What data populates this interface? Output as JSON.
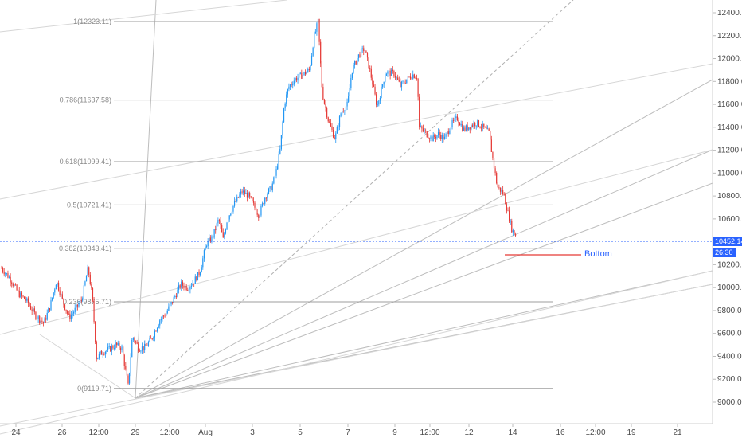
{
  "chart_data": {
    "type": "candlestick",
    "price_axis": {
      "ticks": [
        "12400.00",
        "12200.00",
        "12000.00",
        "11800.00",
        "11600.00",
        "11400.00",
        "11200.00",
        "11000.00",
        "10800.00",
        "10600.00",
        "10400.00",
        "10200.00",
        "10000.00",
        "9800.00",
        "9600.00",
        "9400.00",
        "9200.00",
        "9000.00"
      ],
      "range": [
        8980,
        12480
      ]
    },
    "time_axis": {
      "ticks": [
        "24",
        "26",
        "12:00",
        "29",
        "12:00",
        "Aug",
        "3",
        "5",
        "7",
        "9",
        "12:00",
        "12",
        "14",
        "16",
        "12:00",
        "19",
        "21"
      ]
    },
    "current_price": {
      "label": "10452.14",
      "value": 10452.14,
      "countdown": "26:30",
      "color": "#2962ff"
    },
    "fib_levels": [
      {
        "ratio": "1",
        "price": 12323.11,
        "label": "1(12323.11)"
      },
      {
        "ratio": "0.786",
        "price": 11637.58,
        "label": "0.786(11637.58)"
      },
      {
        "ratio": "0.618",
        "price": 11099.41,
        "label": "0.618(11099.41)"
      },
      {
        "ratio": "0.5",
        "price": 10721.41,
        "label": "0.5(10721.41)"
      },
      {
        "ratio": "0.382",
        "price": 10343.41,
        "label": "0.382(10343.41)"
      },
      {
        "ratio": "0.236",
        "price": 9875.71,
        "label": "0.236(9875.71)"
      },
      {
        "ratio": "0",
        "price": 9119.71,
        "label": "0(9119.71)"
      }
    ],
    "annotation": {
      "text": "Bottom",
      "price": 10343
    },
    "colors": {
      "up": "#2196f3",
      "down": "#e53935",
      "fib_line": "#9e9e9e",
      "fan_line": "#bdbdbd"
    },
    "close_path": [
      [
        0,
        10170
      ],
      [
        0.4,
        10080
      ],
      [
        0.8,
        9950
      ],
      [
        1.2,
        9880
      ],
      [
        1.6,
        9760
      ],
      [
        2.0,
        9690
      ],
      [
        2.3,
        9840
      ],
      [
        2.6,
        10060
      ],
      [
        2.9,
        9880
      ],
      [
        3.2,
        9740
      ],
      [
        3.5,
        9810
      ],
      [
        3.8,
        9900
      ],
      [
        4.1,
        10170
      ],
      [
        4.3,
        9920
      ],
      [
        4.5,
        9390
      ],
      [
        4.8,
        9440
      ],
      [
        5.1,
        9460
      ],
      [
        5.4,
        9500
      ],
      [
        5.7,
        9470
      ],
      [
        5.95,
        9200
      ],
      [
        6.0,
        9140
      ],
      [
        6.2,
        9580
      ],
      [
        6.5,
        9470
      ],
      [
        6.8,
        9480
      ],
      [
        7.1,
        9550
      ],
      [
        7.5,
        9720
      ],
      [
        7.8,
        9780
      ],
      [
        8.1,
        9880
      ],
      [
        8.5,
        10030
      ],
      [
        8.8,
        10000
      ],
      [
        9.1,
        10050
      ],
      [
        9.4,
        10140
      ],
      [
        9.7,
        10380
      ],
      [
        10.0,
        10440
      ],
      [
        10.3,
        10600
      ],
      [
        10.5,
        10420
      ],
      [
        10.7,
        10600
      ],
      [
        11.0,
        10720
      ],
      [
        11.4,
        10840
      ],
      [
        11.7,
        10800
      ],
      [
        12.0,
        10700
      ],
      [
        12.2,
        10630
      ],
      [
        12.5,
        10800
      ],
      [
        12.8,
        10880
      ],
      [
        13.0,
        11000
      ],
      [
        13.2,
        11200
      ],
      [
        13.4,
        11600
      ],
      [
        13.6,
        11750
      ],
      [
        13.9,
        11820
      ],
      [
        14.2,
        11850
      ],
      [
        14.6,
        11900
      ],
      [
        14.8,
        12180
      ],
      [
        15.0,
        12320
      ],
      [
        15.2,
        11700
      ],
      [
        15.5,
        11450
      ],
      [
        15.8,
        11300
      ],
      [
        16.1,
        11540
      ],
      [
        16.4,
        11600
      ],
      [
        16.6,
        11890
      ],
      [
        16.9,
        12020
      ],
      [
        17.2,
        12090
      ],
      [
        17.5,
        11860
      ],
      [
        17.8,
        11580
      ],
      [
        18.2,
        11880
      ],
      [
        18.6,
        11870
      ],
      [
        18.9,
        11760
      ],
      [
        19.2,
        11820
      ],
      [
        19.5,
        11860
      ],
      [
        19.7,
        11840
      ],
      [
        19.8,
        11400
      ],
      [
        20.1,
        11350
      ],
      [
        20.4,
        11300
      ],
      [
        20.7,
        11340
      ],
      [
        21.0,
        11300
      ],
      [
        21.3,
        11420
      ],
      [
        21.6,
        11480
      ],
      [
        21.9,
        11380
      ],
      [
        22.2,
        11410
      ],
      [
        22.5,
        11440
      ],
      [
        22.8,
        11400
      ],
      [
        23.1,
        11350
      ],
      [
        23.3,
        11100
      ],
      [
        23.5,
        10880
      ],
      [
        23.8,
        10820
      ],
      [
        24.0,
        10650
      ],
      [
        24.2,
        10500
      ],
      [
        24.4,
        10452
      ]
    ]
  }
}
